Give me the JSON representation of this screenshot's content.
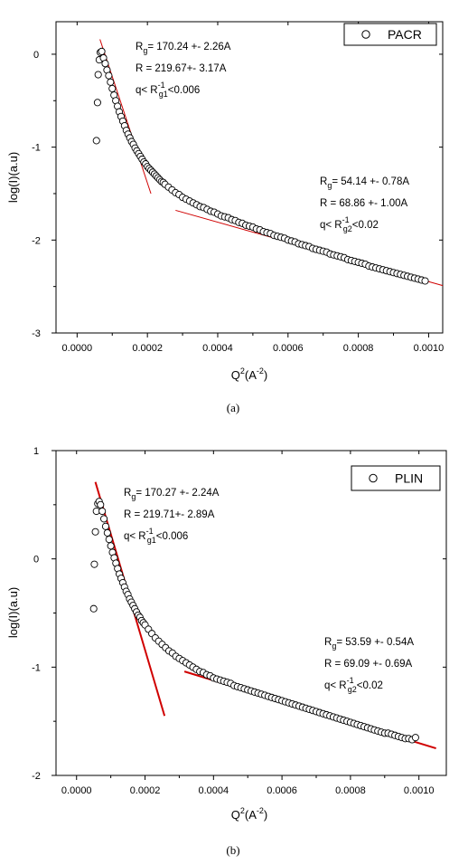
{
  "chart_data": [
    {
      "type": "scatter",
      "caption": "(a)",
      "legend": "PACR",
      "legend_position": "top-right",
      "xlabel_main": "Q",
      "xlabel_sup": "2",
      "xlabel_paren_open": "(A",
      "xlabel_paren_sup": "-2",
      "xlabel_paren_close": ")",
      "ylabel": "log(I)(a.u)",
      "xlim": [
        -6e-05,
        0.00104
      ],
      "ylim": [
        -3,
        0.35
      ],
      "xticks": [
        0.0,
        0.0002,
        0.0004,
        0.0006,
        0.0008,
        0.001
      ],
      "xtick_labels": [
        "0.0000",
        "0.0002",
        "0.0004",
        "0.0006",
        "0.0008",
        "0.0010"
      ],
      "yticks": [
        0,
        -1,
        -2,
        -3
      ],
      "ytick_labels": [
        "0",
        "-1",
        "-2",
        "-3"
      ],
      "grid": false,
      "fit_color": "#d00000",
      "fit_width": 1,
      "fit_lines": [
        {
          "x": [
            6.5e-05,
            0.00021
          ],
          "y": [
            0.16,
            -1.5
          ]
        },
        {
          "x": [
            0.00028,
            0.00104
          ],
          "y": [
            -1.68,
            -2.49
          ]
        }
      ],
      "scatter_points": [
        [
          5.5e-05,
          -0.93
        ],
        [
          5.8e-05,
          -0.52
        ],
        [
          6e-05,
          -0.22
        ],
        [
          6.3e-05,
          -0.06
        ],
        [
          6.6e-05,
          0.02
        ],
        [
          7e-05,
          0.03
        ],
        [
          7.5e-05,
          -0.04
        ],
        [
          8e-05,
          -0.1
        ],
        [
          8.5e-05,
          -0.17
        ],
        [
          9e-05,
          -0.23
        ],
        [
          9.5e-05,
          -0.3
        ],
        [
          0.0001,
          -0.37
        ],
        [
          0.000105,
          -0.44
        ],
        [
          0.00011,
          -0.5
        ],
        [
          0.000115,
          -0.56
        ],
        [
          0.00012,
          -0.62
        ],
        [
          0.000125,
          -0.67
        ],
        [
          0.00013,
          -0.72
        ],
        [
          0.000135,
          -0.77
        ],
        [
          0.00014,
          -0.82
        ],
        [
          0.000145,
          -0.86
        ],
        [
          0.00015,
          -0.9
        ],
        [
          0.000155,
          -0.94
        ],
        [
          0.00016,
          -0.97
        ],
        [
          0.000165,
          -1.01
        ],
        [
          0.00017,
          -1.04
        ],
        [
          0.000175,
          -1.07
        ],
        [
          0.00018,
          -1.1
        ],
        [
          0.000185,
          -1.13
        ],
        [
          0.00019,
          -1.16
        ],
        [
          0.000195,
          -1.18
        ],
        [
          0.0002,
          -1.21
        ],
        [
          0.000205,
          -1.23
        ],
        [
          0.00021,
          -1.25
        ],
        [
          0.000215,
          -1.27
        ],
        [
          0.00022,
          -1.29
        ],
        [
          0.000225,
          -1.31
        ],
        [
          0.00023,
          -1.33
        ],
        [
          0.000235,
          -1.35
        ],
        [
          0.00024,
          -1.37
        ],
        [
          0.000245,
          -1.38
        ],
        [
          0.00025,
          -1.4
        ],
        [
          0.00026,
          -1.43
        ],
        [
          0.00027,
          -1.46
        ],
        [
          0.00028,
          -1.49
        ],
        [
          0.00029,
          -1.51
        ],
        [
          0.0003,
          -1.54
        ],
        [
          0.00031,
          -1.56
        ],
        [
          0.00032,
          -1.58
        ],
        [
          0.00033,
          -1.6
        ],
        [
          0.00034,
          -1.62
        ],
        [
          0.00035,
          -1.64
        ],
        [
          0.00036,
          -1.65
        ],
        [
          0.00037,
          -1.67
        ],
        [
          0.00038,
          -1.69
        ],
        [
          0.00039,
          -1.7
        ],
        [
          0.0004,
          -1.72
        ],
        [
          0.00041,
          -1.74
        ],
        [
          0.00042,
          -1.75
        ],
        [
          0.00043,
          -1.76
        ],
        [
          0.00044,
          -1.78
        ],
        [
          0.00045,
          -1.79
        ],
        [
          0.00046,
          -1.81
        ],
        [
          0.00047,
          -1.82
        ],
        [
          0.00048,
          -1.84
        ],
        [
          0.00049,
          -1.85
        ],
        [
          0.0005,
          -1.86
        ],
        [
          0.00051,
          -1.88
        ],
        [
          0.00052,
          -1.89
        ],
        [
          0.00053,
          -1.91
        ],
        [
          0.00054,
          -1.92
        ],
        [
          0.00055,
          -1.93
        ],
        [
          0.00056,
          -1.95
        ],
        [
          0.00057,
          -1.96
        ],
        [
          0.00058,
          -1.97
        ],
        [
          0.00059,
          -1.98
        ],
        [
          0.0006,
          -2.0
        ],
        [
          0.00061,
          -2.01
        ],
        [
          0.00062,
          -2.02
        ],
        [
          0.00063,
          -2.04
        ],
        [
          0.00064,
          -2.05
        ],
        [
          0.00065,
          -2.06
        ],
        [
          0.00066,
          -2.07
        ],
        [
          0.00067,
          -2.09
        ],
        [
          0.00068,
          -2.1
        ],
        [
          0.00069,
          -2.11
        ],
        [
          0.0007,
          -2.12
        ],
        [
          0.00071,
          -2.13
        ],
        [
          0.00072,
          -2.15
        ],
        [
          0.00073,
          -2.16
        ],
        [
          0.00074,
          -2.17
        ],
        [
          0.00075,
          -2.18
        ],
        [
          0.00076,
          -2.19
        ],
        [
          0.00077,
          -2.21
        ],
        [
          0.00078,
          -2.22
        ],
        [
          0.00079,
          -2.23
        ],
        [
          0.0008,
          -2.24
        ],
        [
          0.00081,
          -2.25
        ],
        [
          0.00082,
          -2.26
        ],
        [
          0.00083,
          -2.28
        ],
        [
          0.00084,
          -2.29
        ],
        [
          0.00085,
          -2.3
        ],
        [
          0.00086,
          -2.31
        ],
        [
          0.00087,
          -2.32
        ],
        [
          0.00088,
          -2.33
        ],
        [
          0.00089,
          -2.34
        ],
        [
          0.0009,
          -2.35
        ],
        [
          0.00091,
          -2.36
        ],
        [
          0.00092,
          -2.37
        ],
        [
          0.00093,
          -2.38
        ],
        [
          0.00094,
          -2.39
        ],
        [
          0.00095,
          -2.4
        ],
        [
          0.00096,
          -2.41
        ],
        [
          0.00097,
          -2.42
        ],
        [
          0.00098,
          -2.43
        ],
        [
          0.00099,
          -2.44
        ]
      ],
      "annotations": [
        {
          "lines": [
            {
              "pre": "R",
              "sub": "g",
              "sup": "",
              "post": "= 170.24 +- 2.26A"
            },
            {
              "pre": "R = 219.67+- 3.17A",
              "sub": "",
              "sup": "",
              "post": ""
            },
            {
              "pre": "q< R",
              "sub": "g1",
              "sup": "-1",
              "post": "<0.006"
            }
          ]
        },
        {
          "lines": [
            {
              "pre": "R",
              "sub": "g",
              "sup": "",
              "post": "= 54.14 +- 0.78A"
            },
            {
              "pre": "R = 68.86 +- 1.00A",
              "sub": "",
              "sup": "",
              "post": ""
            },
            {
              "pre": "q< R",
              "sub": "g2",
              "sup": "-1",
              "post": "<0.02"
            }
          ]
        }
      ]
    },
    {
      "type": "scatter",
      "caption": "(b)",
      "legend": "PLIN",
      "legend_position": "top-right",
      "xlabel_main": "Q",
      "xlabel_sup": "2",
      "xlabel_paren_open": "(A",
      "xlabel_paren_sup": "-2",
      "xlabel_paren_close": ")",
      "ylabel": "log(I)(a.u)",
      "xlim": [
        -6e-05,
        0.00108
      ],
      "ylim": [
        -2,
        1
      ],
      "xticks": [
        0.0,
        0.0002,
        0.0004,
        0.0006,
        0.0008,
        0.001
      ],
      "xtick_labels": [
        "0.0000",
        "0.0002",
        "0.0004",
        "0.0006",
        "0.0008",
        "0.0010"
      ],
      "yticks": [
        1,
        0,
        -1,
        -2
      ],
      "ytick_labels": [
        "1",
        "0",
        "-1",
        "-2"
      ],
      "grid": false,
      "fit_color": "#d00000",
      "fit_width": 2,
      "fit_lines": [
        {
          "x": [
            5.5e-05,
            0.000257
          ],
          "y": [
            0.71,
            -1.45
          ]
        },
        {
          "x": [
            0.000315,
            0.00105
          ],
          "y": [
            -1.04,
            -1.75
          ]
        }
      ],
      "scatter_points": [
        [
          5e-05,
          -0.46
        ],
        [
          5.2e-05,
          -0.05
        ],
        [
          5.5e-05,
          0.25
        ],
        [
          5.8e-05,
          0.44
        ],
        [
          6.2e-05,
          0.51
        ],
        [
          6.6e-05,
          0.53
        ],
        [
          7e-05,
          0.5
        ],
        [
          7.5e-05,
          0.44
        ],
        [
          8e-05,
          0.37
        ],
        [
          8.5e-05,
          0.3
        ],
        [
          9e-05,
          0.24
        ],
        [
          9.5e-05,
          0.18
        ],
        [
          0.0001,
          0.12
        ],
        [
          0.000105,
          0.06
        ],
        [
          0.00011,
          0.01
        ],
        [
          0.000115,
          -0.04
        ],
        [
          0.00012,
          -0.09
        ],
        [
          0.000125,
          -0.14
        ],
        [
          0.00013,
          -0.18
        ],
        [
          0.000135,
          -0.22
        ],
        [
          0.00014,
          -0.26
        ],
        [
          0.000145,
          -0.3
        ],
        [
          0.00015,
          -0.33
        ],
        [
          0.000155,
          -0.37
        ],
        [
          0.00016,
          -0.4
        ],
        [
          0.000165,
          -0.43
        ],
        [
          0.00017,
          -0.46
        ],
        [
          0.000175,
          -0.49
        ],
        [
          0.00018,
          -0.52
        ],
        [
          0.000185,
          -0.54
        ],
        [
          0.00019,
          -0.57
        ],
        [
          0.000195,
          -0.59
        ],
        [
          0.0002,
          -0.61
        ],
        [
          0.00021,
          -0.65
        ],
        [
          0.00022,
          -0.69
        ],
        [
          0.00023,
          -0.73
        ],
        [
          0.00024,
          -0.76
        ],
        [
          0.00025,
          -0.79
        ],
        [
          0.00026,
          -0.82
        ],
        [
          0.00027,
          -0.85
        ],
        [
          0.00028,
          -0.87
        ],
        [
          0.00029,
          -0.9
        ],
        [
          0.0003,
          -0.92
        ],
        [
          0.00031,
          -0.94
        ],
        [
          0.00032,
          -0.96
        ],
        [
          0.00033,
          -0.98
        ],
        [
          0.00034,
          -1.0
        ],
        [
          0.00035,
          -1.02
        ],
        [
          0.00036,
          -1.04
        ],
        [
          0.00037,
          -1.05
        ],
        [
          0.00038,
          -1.07
        ],
        [
          0.00039,
          -1.08
        ],
        [
          0.0004,
          -1.1
        ],
        [
          0.00041,
          -1.11
        ],
        [
          0.00042,
          -1.12
        ],
        [
          0.00043,
          -1.13
        ],
        [
          0.00044,
          -1.14
        ],
        [
          0.00045,
          -1.15
        ],
        [
          0.00046,
          -1.17
        ],
        [
          0.00047,
          -1.18
        ],
        [
          0.00048,
          -1.19
        ],
        [
          0.00049,
          -1.2
        ],
        [
          0.0005,
          -1.21
        ],
        [
          0.00051,
          -1.22
        ],
        [
          0.00052,
          -1.23
        ],
        [
          0.00053,
          -1.24
        ],
        [
          0.00054,
          -1.25
        ],
        [
          0.00055,
          -1.26
        ],
        [
          0.00056,
          -1.27
        ],
        [
          0.00057,
          -1.28
        ],
        [
          0.00058,
          -1.29
        ],
        [
          0.00059,
          -1.3
        ],
        [
          0.0006,
          -1.31
        ],
        [
          0.00061,
          -1.32
        ],
        [
          0.00062,
          -1.33
        ],
        [
          0.00063,
          -1.34
        ],
        [
          0.00064,
          -1.35
        ],
        [
          0.00065,
          -1.36
        ],
        [
          0.00066,
          -1.37
        ],
        [
          0.00067,
          -1.38
        ],
        [
          0.00068,
          -1.39
        ],
        [
          0.00069,
          -1.4
        ],
        [
          0.0007,
          -1.41
        ],
        [
          0.00071,
          -1.42
        ],
        [
          0.00072,
          -1.43
        ],
        [
          0.00073,
          -1.44
        ],
        [
          0.00074,
          -1.45
        ],
        [
          0.00075,
          -1.46
        ],
        [
          0.00076,
          -1.47
        ],
        [
          0.00077,
          -1.48
        ],
        [
          0.00078,
          -1.49
        ],
        [
          0.00079,
          -1.5
        ],
        [
          0.0008,
          -1.51
        ],
        [
          0.00081,
          -1.52
        ],
        [
          0.00082,
          -1.53
        ],
        [
          0.00083,
          -1.54
        ],
        [
          0.00084,
          -1.55
        ],
        [
          0.00085,
          -1.56
        ],
        [
          0.00086,
          -1.57
        ],
        [
          0.00087,
          -1.58
        ],
        [
          0.00088,
          -1.59
        ],
        [
          0.00089,
          -1.6
        ],
        [
          0.0009,
          -1.61
        ],
        [
          0.00091,
          -1.61
        ],
        [
          0.00092,
          -1.62
        ],
        [
          0.00093,
          -1.63
        ],
        [
          0.00094,
          -1.64
        ],
        [
          0.00095,
          -1.65
        ],
        [
          0.00096,
          -1.66
        ],
        [
          0.00097,
          -1.66
        ],
        [
          0.00098,
          -1.67
        ],
        [
          0.00099,
          -1.65
        ]
      ],
      "annotations": [
        {
          "lines": [
            {
              "pre": "R",
              "sub": "g",
              "sup": "",
              "post": "= 170.27 +- 2.24A"
            },
            {
              "pre": "R = 219.71+- 2.89A",
              "sub": "",
              "sup": "",
              "post": ""
            },
            {
              "pre": "q< R",
              "sub": "g1",
              "sup": "-1",
              "post": "<0.006"
            }
          ]
        },
        {
          "lines": [
            {
              "pre": "R",
              "sub": "g",
              "sup": "",
              "post": "= 53.59 +- 0.54A"
            },
            {
              "pre": "R = 69.09 +- 0.69A",
              "sub": "",
              "sup": "",
              "post": ""
            },
            {
              "pre": "q< R",
              "sub": "g2",
              "sup": "-1",
              "post": "<0.02"
            }
          ]
        }
      ]
    }
  ]
}
